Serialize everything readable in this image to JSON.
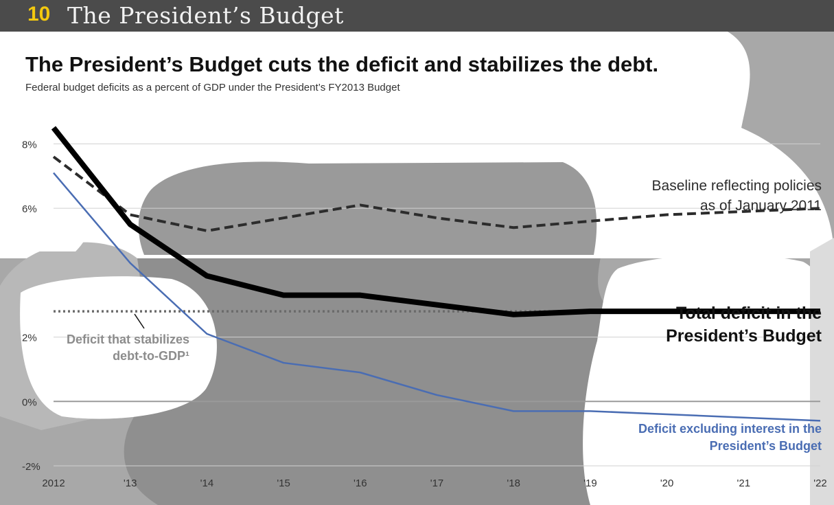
{
  "header": {
    "number": "10",
    "title": "The President’s Budget"
  },
  "chart_data": {
    "type": "line",
    "title": "The President’s Budget cuts the deficit and stabilizes the debt.",
    "subtitle": "Federal budget deficits as a percent of GDP under the President’s FY2013 Budget",
    "xlabel": "",
    "ylabel": "",
    "x": [
      "2012",
      "'13",
      "'14",
      "'15",
      "'16",
      "'17",
      "'18",
      "'19",
      "'20",
      "'21",
      "'22"
    ],
    "ylim": [
      -2,
      8.5
    ],
    "y_ticks": [
      "8%",
      "6%",
      "2%",
      "0%",
      "-2%"
    ],
    "y_tick_values": [
      8,
      6,
      2,
      0,
      -2
    ],
    "grid": true,
    "series": [
      {
        "name": "Baseline reflecting policies as of January 2011",
        "style": "dashed",
        "color": "#2c2c2c",
        "values": [
          7.6,
          5.8,
          5.3,
          5.7,
          6.1,
          5.7,
          5.4,
          5.6,
          5.8,
          5.9,
          6.0
        ]
      },
      {
        "name": "Total deficit in the President’s Budget",
        "style": "bold",
        "color": "#000000",
        "values": [
          8.5,
          5.5,
          3.9,
          3.3,
          3.3,
          3.0,
          2.7,
          2.8,
          2.8,
          2.8,
          2.8
        ]
      },
      {
        "name": "Deficit excluding interest in the President’s Budget",
        "style": "solid",
        "color": "#4a6db3",
        "values": [
          7.1,
          4.3,
          2.1,
          1.2,
          0.9,
          0.2,
          -0.3,
          -0.3,
          -0.4,
          -0.5,
          -0.6
        ]
      },
      {
        "name": "Deficit that stabilizes debt-to-GDP¹",
        "style": "dotted",
        "color": "#6b6b6b",
        "values": [
          2.8,
          2.8,
          2.8,
          2.8,
          2.8,
          2.8,
          2.8,
          2.8,
          2.8,
          2.8,
          2.8
        ]
      }
    ],
    "annotations": {
      "baseline": [
        "Baseline reflecting policies",
        "as of January 2011"
      ],
      "total": [
        "Total deficit in the",
        "President’s Budget"
      ],
      "stabilizes": [
        "Deficit that stabilizes",
        "debt-to-GDP¹"
      ],
      "excluding": [
        "Deficit excluding interest in the",
        "President’s Budget"
      ]
    }
  }
}
